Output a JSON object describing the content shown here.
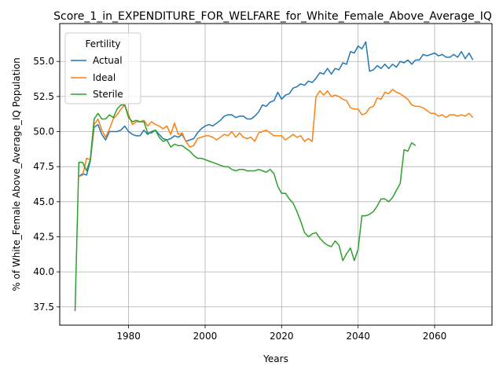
{
  "chart_data": {
    "type": "line",
    "title": "Score_1_in_EXPENDITURE_FOR_WELFARE_for_White_Female_Above_Average_IQ",
    "xlabel": "Years",
    "ylabel": "% of White_Female Above_Average_IQ Population",
    "xlim": [
      1962,
      2075
    ],
    "ylim": [
      36.2,
      57.7
    ],
    "xticks": [
      1980,
      2000,
      2020,
      2040,
      2060
    ],
    "yticks": [
      37.5,
      40.0,
      42.5,
      45.0,
      47.5,
      50.0,
      52.5,
      55.0
    ],
    "grid": true,
    "legend": {
      "title": "Fertility",
      "placement": "upper-left"
    },
    "series": [
      {
        "name": "Actual",
        "color": "#1f77b4",
        "x": [
          1967,
          1968,
          1969,
          1970,
          1971,
          1972,
          1973,
          1974,
          1975,
          1976,
          1977,
          1978,
          1979,
          1980,
          1981,
          1982,
          1983,
          1984,
          1985,
          1986,
          1987,
          1988,
          1989,
          1990,
          1991,
          1992,
          1993,
          1994,
          1995,
          1996,
          1997,
          1998,
          1999,
          2000,
          2001,
          2002,
          2003,
          2004,
          2005,
          2006,
          2007,
          2008,
          2009,
          2010,
          2011,
          2012,
          2013,
          2014,
          2015,
          2016,
          2017,
          2018,
          2019,
          2020,
          2021,
          2022,
          2023,
          2024,
          2025,
          2026,
          2027,
          2028,
          2029,
          2030,
          2031,
          2032,
          2033,
          2034,
          2035,
          2036,
          2037,
          2038,
          2039,
          2040,
          2041,
          2042,
          2043,
          2044,
          2045,
          2046,
          2047,
          2048,
          2049,
          2050,
          2051,
          2052,
          2053,
          2054,
          2055,
          2056,
          2057,
          2058,
          2059,
          2060,
          2061,
          2062,
          2063,
          2064,
          2065,
          2066,
          2067,
          2068,
          2069,
          2070
        ],
        "y": [
          46.8,
          47.0,
          46.9,
          47.9,
          50.3,
          50.5,
          49.8,
          49.4,
          50.0,
          50.0,
          50.0,
          50.1,
          50.4,
          50.0,
          49.8,
          49.7,
          49.7,
          50.1,
          49.8,
          50.0,
          50.1,
          49.8,
          49.5,
          49.4,
          49.5,
          49.7,
          49.6,
          49.8,
          49.3,
          49.4,
          49.5,
          49.9,
          50.2,
          50.4,
          50.5,
          50.4,
          50.6,
          50.8,
          51.1,
          51.2,
          51.2,
          51.0,
          51.1,
          51.1,
          50.9,
          50.9,
          51.1,
          51.4,
          51.9,
          51.8,
          52.1,
          52.2,
          52.8,
          52.3,
          52.6,
          52.7,
          53.1,
          53.2,
          53.4,
          53.3,
          53.6,
          53.5,
          53.8,
          54.2,
          54.1,
          54.5,
          54.1,
          54.5,
          54.4,
          54.9,
          54.8,
          55.7,
          55.6,
          56.1,
          55.9,
          56.4,
          54.3,
          54.4,
          54.7,
          54.5,
          54.8,
          54.5,
          54.8,
          54.6,
          55.0,
          54.9,
          55.1,
          54.8,
          55.1,
          55.1,
          55.5,
          55.4,
          55.5,
          55.6,
          55.4,
          55.5,
          55.3,
          55.3,
          55.5,
          55.3,
          55.7,
          55.2,
          55.6,
          55.1
        ]
      },
      {
        "name": "Ideal",
        "color": "#ff7f0e",
        "x": [
          1967,
          1968,
          1969,
          1970,
          1971,
          1972,
          1973,
          1974,
          1975,
          1976,
          1977,
          1978,
          1979,
          1980,
          1981,
          1982,
          1983,
          1984,
          1985,
          1986,
          1987,
          1988,
          1989,
          1990,
          1991,
          1992,
          1993,
          1994,
          1995,
          1996,
          1997,
          1998,
          1999,
          2000,
          2001,
          2002,
          2003,
          2004,
          2005,
          2006,
          2007,
          2008,
          2009,
          2010,
          2011,
          2012,
          2013,
          2014,
          2015,
          2016,
          2017,
          2018,
          2019,
          2020,
          2021,
          2022,
          2023,
          2024,
          2025,
          2026,
          2027,
          2028,
          2029,
          2030,
          2031,
          2032,
          2033,
          2034,
          2035,
          2036,
          2037,
          2038,
          2039,
          2040,
          2041,
          2042,
          2043,
          2044,
          2045,
          2046,
          2047,
          2048,
          2049,
          2050,
          2051,
          2052,
          2053,
          2054,
          2055,
          2056,
          2057,
          2058,
          2059,
          2060,
          2061,
          2062,
          2063,
          2064,
          2065,
          2066,
          2067,
          2068,
          2069,
          2070
        ],
        "y": [
          46.8,
          46.9,
          48.1,
          48.0,
          50.5,
          50.9,
          50.1,
          49.6,
          50.2,
          50.9,
          51.2,
          51.6,
          51.9,
          51.2,
          50.5,
          50.7,
          50.7,
          50.8,
          50.4,
          50.7,
          50.5,
          50.4,
          50.2,
          50.4,
          49.8,
          50.6,
          49.8,
          49.9,
          49.3,
          48.9,
          49.0,
          49.5,
          49.6,
          49.7,
          49.7,
          49.6,
          49.4,
          49.6,
          49.8,
          49.7,
          50.0,
          49.6,
          49.9,
          49.6,
          49.5,
          49.6,
          49.3,
          49.9,
          50.0,
          50.1,
          49.9,
          49.7,
          49.7,
          49.7,
          49.4,
          49.6,
          49.8,
          49.6,
          49.7,
          49.3,
          49.5,
          49.3,
          52.5,
          52.9,
          52.6,
          52.9,
          52.5,
          52.6,
          52.5,
          52.3,
          52.2,
          51.7,
          51.6,
          51.6,
          51.2,
          51.3,
          51.7,
          51.8,
          52.4,
          52.3,
          52.8,
          52.7,
          53.0,
          52.8,
          52.7,
          52.5,
          52.3,
          51.9,
          51.8,
          51.8,
          51.7,
          51.5,
          51.3,
          51.3,
          51.1,
          51.2,
          51.0,
          51.2,
          51.2,
          51.1,
          51.2,
          51.1,
          51.3,
          51.0
        ]
      },
      {
        "name": "Sterile",
        "color": "#2ca02c",
        "x": [
          1966,
          1967,
          1968,
          1969,
          1970,
          1971,
          1972,
          1973,
          1974,
          1975,
          1976,
          1977,
          1978,
          1979,
          1980,
          1981,
          1982,
          1983,
          1984,
          1985,
          1986,
          1987,
          1988,
          1989,
          1990,
          1991,
          1992,
          1993,
          1994,
          1995,
          1996,
          1997,
          1998,
          1999,
          2000,
          2001,
          2002,
          2003,
          2004,
          2005,
          2006,
          2007,
          2008,
          2009,
          2010,
          2011,
          2012,
          2013,
          2014,
          2015,
          2016,
          2017,
          2018,
          2019,
          2020,
          2021,
          2022,
          2023,
          2024,
          2025,
          2026,
          2027,
          2028,
          2029,
          2030,
          2031,
          2032,
          2033,
          2034,
          2035,
          2036,
          2037,
          2038,
          2039,
          2040,
          2041,
          2042,
          2043,
          2044,
          2045,
          2046,
          2047,
          2048,
          2049,
          2050,
          2051,
          2052,
          2053,
          2054,
          2055
        ],
        "y": [
          37.2,
          47.8,
          47.8,
          47.2,
          48.0,
          50.9,
          51.3,
          50.9,
          50.9,
          51.2,
          51.0,
          51.6,
          51.9,
          51.9,
          51.0,
          50.7,
          50.8,
          50.7,
          50.7,
          49.9,
          49.9,
          50.1,
          49.6,
          49.3,
          49.4,
          48.9,
          49.1,
          49.0,
          49.0,
          48.8,
          48.6,
          48.3,
          48.1,
          48.1,
          48.0,
          47.9,
          47.8,
          47.7,
          47.6,
          47.5,
          47.5,
          47.3,
          47.2,
          47.3,
          47.3,
          47.2,
          47.2,
          47.2,
          47.3,
          47.2,
          47.1,
          47.3,
          47.0,
          46.1,
          45.6,
          45.6,
          45.2,
          44.9,
          44.3,
          43.6,
          42.8,
          42.5,
          42.7,
          42.8,
          42.4,
          42.1,
          41.9,
          41.8,
          42.2,
          41.9,
          40.8,
          41.3,
          41.7,
          40.8,
          41.6,
          44.0,
          44.0,
          44.1,
          44.3,
          44.7,
          45.2,
          45.2,
          45.0,
          45.3,
          45.8,
          46.3,
          48.7,
          48.6,
          49.2,
          49.0
        ]
      }
    ]
  }
}
